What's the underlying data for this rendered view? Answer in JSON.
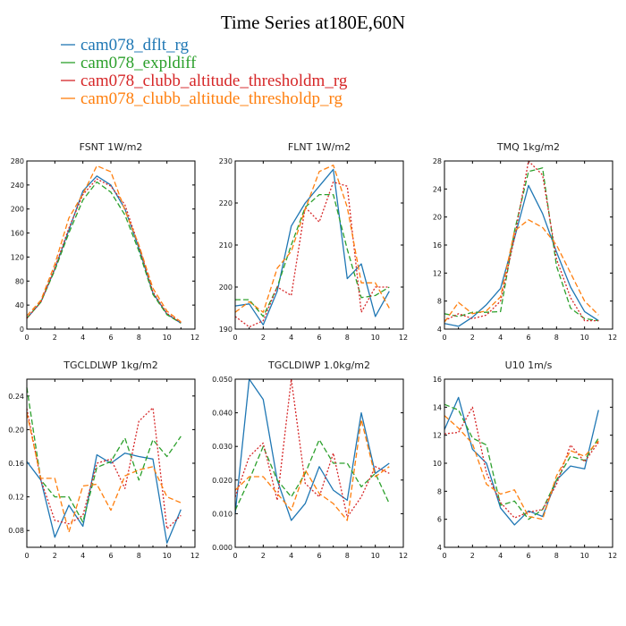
{
  "figure": {
    "title": "Time Series at180E,60N",
    "series": [
      {
        "name": "cam078_dflt_rg",
        "color": "#1f77b4",
        "dash": ""
      },
      {
        "name": "cam078_expldiff",
        "color": "#2ca02c",
        "dash": "6,3"
      },
      {
        "name": "cam078_clubb_altitude_thresholdm_rg",
        "color": "#d62728",
        "dash": "2,2"
      },
      {
        "name": "cam078_clubb_altitude_thresholdp_rg",
        "color": "#ff7f0e",
        "dash": "6,3"
      }
    ]
  },
  "chart_data": [
    {
      "type": "line",
      "title": "FSNT   1W/m2",
      "x": [
        0,
        1,
        2,
        3,
        4,
        5,
        6,
        7,
        8,
        9,
        10,
        11
      ],
      "xlim": [
        0,
        12
      ],
      "xticks": [
        "0",
        "2",
        "4",
        "6",
        "8",
        "10",
        "12"
      ],
      "ylim": [
        0,
        280
      ],
      "yticks": [
        "0",
        "40",
        "80",
        "120",
        "160",
        "200",
        "240",
        "280"
      ],
      "series": [
        {
          "name": "cam078_dflt_rg",
          "values": [
            18,
            45,
            100,
            165,
            230,
            255,
            240,
            200,
            135,
            60,
            25,
            10
          ]
        },
        {
          "name": "cam078_expldiff",
          "values": [
            18,
            45,
            98,
            160,
            215,
            245,
            228,
            190,
            130,
            58,
            24,
            10
          ]
        },
        {
          "name": "cam078_clubb_altitude_thresholdm_rg",
          "values": [
            18,
            45,
            102,
            168,
            224,
            250,
            238,
            207,
            138,
            62,
            26,
            11
          ]
        },
        {
          "name": "cam078_clubb_altitude_thresholdp_rg",
          "values": [
            22,
            48,
            108,
            185,
            225,
            272,
            262,
            198,
            140,
            68,
            30,
            12
          ]
        }
      ]
    },
    {
      "type": "line",
      "title": "FLNT   1W/m2",
      "x": [
        0,
        1,
        2,
        3,
        4,
        5,
        6,
        7,
        8,
        9,
        10,
        11
      ],
      "xlim": [
        0,
        12
      ],
      "xticks": [
        "0",
        "2",
        "4",
        "6",
        "8",
        "10",
        "12"
      ],
      "ylim": [
        190,
        230
      ],
      "yticks": [
        "190",
        "200",
        "210",
        "220",
        "230"
      ],
      "series": [
        {
          "name": "cam078_dflt_rg",
          "values": [
            195.5,
            196,
            191,
            199,
            214.5,
            220,
            224,
            228,
            202,
            205.5,
            193,
            199
          ]
        },
        {
          "name": "cam078_expldiff",
          "values": [
            197,
            197,
            193,
            200,
            210,
            219,
            222,
            222,
            209,
            197.5,
            198,
            200
          ]
        },
        {
          "name": "cam078_clubb_altitude_thresholdm_rg",
          "values": [
            193,
            190.5,
            192,
            200,
            198,
            219,
            215.5,
            225,
            224,
            194,
            200,
            200
          ]
        },
        {
          "name": "cam078_clubb_altitude_thresholdp_rg",
          "values": [
            194,
            196.5,
            194,
            204.5,
            208.5,
            218.5,
            227.5,
            229,
            219,
            201,
            201,
            195
          ]
        }
      ]
    },
    {
      "type": "line",
      "title": "TMQ   1kg/m2",
      "x": [
        0,
        1,
        2,
        3,
        4,
        5,
        6,
        7,
        8,
        9,
        10,
        11
      ],
      "xlim": [
        0,
        12
      ],
      "xticks": [
        "0",
        "2",
        "4",
        "6",
        "8",
        "10",
        "12"
      ],
      "ylim": [
        4,
        28
      ],
      "yticks": [
        "4",
        "8",
        "12",
        "16",
        "20",
        "24",
        "28"
      ],
      "series": [
        {
          "name": "cam078_dflt_rg",
          "values": [
            4.8,
            4.4,
            5.7,
            7.5,
            9.8,
            17,
            24.5,
            20.5,
            15,
            10,
            6.5,
            5.2
          ]
        },
        {
          "name": "cam078_expldiff",
          "values": [
            6.2,
            5.8,
            6.4,
            6.4,
            6.5,
            18,
            26.5,
            27,
            13,
            7,
            5.5,
            5.2
          ]
        },
        {
          "name": "cam078_clubb_altitude_thresholdm_rg",
          "values": [
            5.2,
            6.2,
            5.5,
            6,
            8,
            17,
            28,
            26,
            14,
            8.5,
            5.2,
            5.2
          ]
        },
        {
          "name": "cam078_clubb_altitude_thresholdp_rg",
          "values": [
            5,
            7.8,
            6.2,
            6.6,
            8.6,
            18,
            19.6,
            18.5,
            16,
            12,
            8,
            6
          ]
        }
      ]
    },
    {
      "type": "line",
      "title": "TGCLDLWP   1kg/m2",
      "x": [
        0,
        1,
        2,
        3,
        4,
        5,
        6,
        7,
        8,
        9,
        10,
        11
      ],
      "xlim": [
        0,
        12
      ],
      "xticks": [
        "0",
        "2",
        "4",
        "6",
        "8",
        "10",
        "12"
      ],
      "ylim": [
        0.06,
        0.26
      ],
      "yticks": [
        "0.08",
        "0.12",
        "0.16",
        "0.20",
        "0.24"
      ],
      "series": [
        {
          "name": "cam078_dflt_rg",
          "values": [
            0.162,
            0.14,
            0.072,
            0.11,
            0.085,
            0.17,
            0.16,
            0.172,
            0.168,
            0.165,
            0.065,
            0.105
          ]
        },
        {
          "name": "cam078_expldiff",
          "values": [
            0.25,
            0.14,
            0.12,
            0.12,
            0.09,
            0.155,
            0.162,
            0.19,
            0.14,
            0.188,
            0.168,
            0.192
          ]
        },
        {
          "name": "cam078_clubb_altitude_thresholdm_rg",
          "values": [
            0.225,
            0.14,
            0.092,
            0.088,
            0.098,
            0.16,
            0.165,
            0.13,
            0.21,
            0.226,
            0.082,
            0.098
          ]
        },
        {
          "name": "cam078_clubb_altitude_thresholdp_rg",
          "values": [
            0.22,
            0.142,
            0.142,
            0.078,
            0.133,
            0.135,
            0.104,
            0.145,
            0.152,
            0.156,
            0.12,
            0.113
          ]
        }
      ]
    },
    {
      "type": "line",
      "title": "TGCLDIWP   1.0kg/m2",
      "x": [
        0,
        1,
        2,
        3,
        4,
        5,
        6,
        7,
        8,
        9,
        10,
        11
      ],
      "xlim": [
        0,
        12
      ],
      "xticks": [
        "0",
        "2",
        "4",
        "6",
        "8",
        "10",
        "12"
      ],
      "ylim": [
        0,
        0.05
      ],
      "yticks": [
        "0.000",
        "0.010",
        "0.020",
        "0.030",
        "0.040",
        "0.050"
      ],
      "series": [
        {
          "name": "cam078_dflt_rg",
          "values": [
            0.01,
            0.05,
            0.044,
            0.02,
            0.008,
            0.013,
            0.024,
            0.017,
            0.014,
            0.04,
            0.022,
            0.025
          ]
        },
        {
          "name": "cam078_expldiff",
          "values": [
            0.011,
            0.02,
            0.03,
            0.02,
            0.015,
            0.022,
            0.032,
            0.025,
            0.025,
            0.018,
            0.022,
            0.013
          ]
        },
        {
          "name": "cam078_clubb_altitude_thresholdm_rg",
          "values": [
            0.015,
            0.027,
            0.031,
            0.014,
            0.05,
            0.019,
            0.015,
            0.028,
            0.009,
            0.015,
            0.024,
            0.022
          ]
        },
        {
          "name": "cam078_clubb_altitude_thresholdp_rg",
          "values": [
            0.017,
            0.021,
            0.021,
            0.016,
            0.011,
            0.023,
            0.016,
            0.013,
            0.008,
            0.038,
            0.021,
            0.024
          ]
        }
      ]
    },
    {
      "type": "line",
      "title": "U10   1m/s",
      "x": [
        0,
        1,
        2,
        3,
        4,
        5,
        6,
        7,
        8,
        9,
        10,
        11
      ],
      "xlim": [
        0,
        12
      ],
      "xticks": [
        "0",
        "2",
        "4",
        "6",
        "8",
        "10",
        "12"
      ],
      "ylim": [
        4,
        16
      ],
      "yticks": [
        "4",
        "6",
        "8",
        "10",
        "12",
        "14",
        "16"
      ],
      "series": [
        {
          "name": "cam078_dflt_rg",
          "values": [
            12.4,
            14.7,
            11,
            10,
            6.8,
            5.6,
            6.6,
            6.2,
            8.8,
            9.8,
            9.6,
            13.8
          ]
        },
        {
          "name": "cam078_expldiff",
          "values": [
            14.2,
            13.8,
            11.8,
            11.3,
            7,
            7.3,
            6,
            6.7,
            8.8,
            10.5,
            10.2,
            11.8
          ]
        },
        {
          "name": "cam078_clubb_altitude_thresholdm_rg",
          "values": [
            12.1,
            12.2,
            14,
            9.3,
            7.2,
            6.1,
            6.5,
            6.7,
            8.5,
            11.3,
            10.1,
            11.5
          ]
        },
        {
          "name": "cam078_clubb_altitude_thresholdp_rg",
          "values": [
            13.4,
            12.5,
            11.4,
            8.5,
            7.8,
            8.1,
            6.2,
            6,
            9.1,
            10.9,
            10.5,
            11.6
          ]
        }
      ]
    }
  ]
}
